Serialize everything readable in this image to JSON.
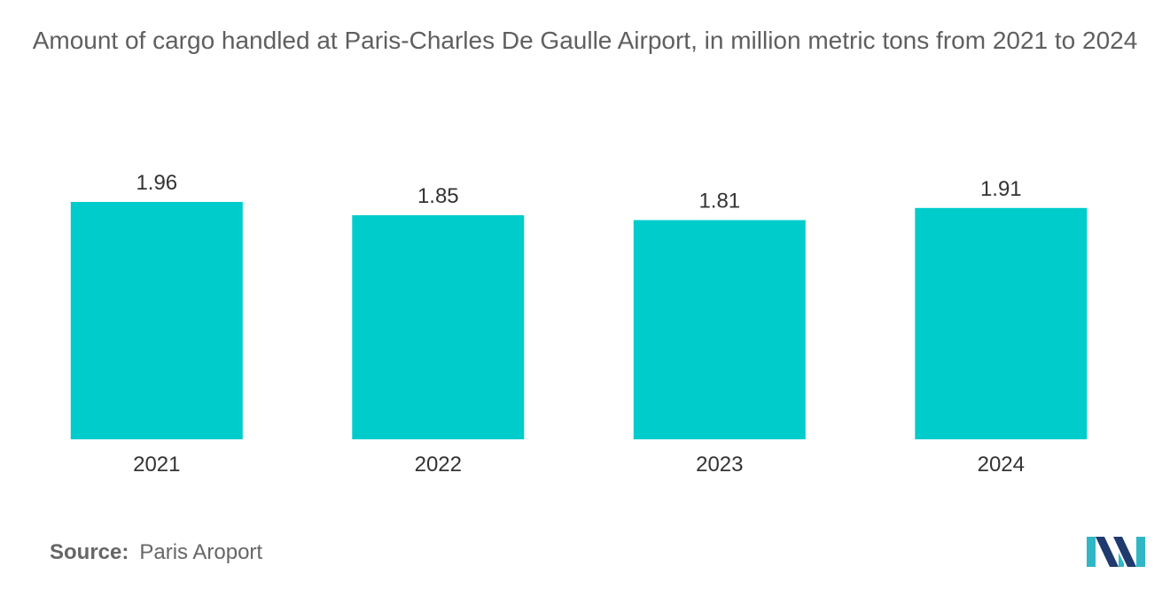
{
  "chart_data": {
    "type": "bar",
    "title": "Amount of cargo handled at Paris-Charles De Gaulle Airport, in million metric tons from 2021 to 2024",
    "categories": [
      "2021",
      "2022",
      "2023",
      "2024"
    ],
    "values": [
      1.96,
      1.85,
      1.81,
      1.91
    ],
    "value_labels": [
      "1.96",
      "1.85",
      "1.81",
      "1.91"
    ],
    "xlabel": "",
    "ylabel": "",
    "ylim": [
      0,
      1.96
    ],
    "grid": false,
    "legend": "none",
    "bar_color": "#00CCCC"
  },
  "source": {
    "prefix": "Source:",
    "text": "Paris Aroport"
  },
  "logo": {
    "icon": "mordor-intelligence-logo",
    "colors": [
      "#1E3A6E",
      "#2FB7C6"
    ]
  }
}
